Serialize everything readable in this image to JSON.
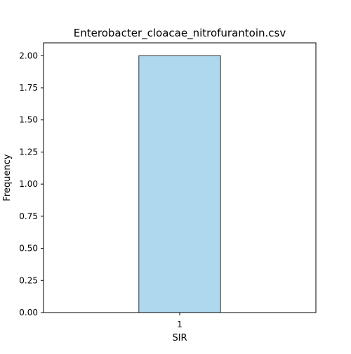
{
  "chart_data": {
    "type": "bar",
    "title": "Enterobacter_cloacae_nitrofurantoin.csv",
    "xlabel": "SIR",
    "ylabel": "Frequency",
    "categories": [
      "1"
    ],
    "values": [
      2.0
    ],
    "ylim": [
      0,
      2.1
    ],
    "yticks": [
      "0.00",
      "0.25",
      "0.50",
      "0.75",
      "1.00",
      "1.25",
      "1.50",
      "1.75",
      "2.00"
    ],
    "grid": false,
    "bar_color": "#add8ee",
    "bar_edge_color": "#333333"
  }
}
